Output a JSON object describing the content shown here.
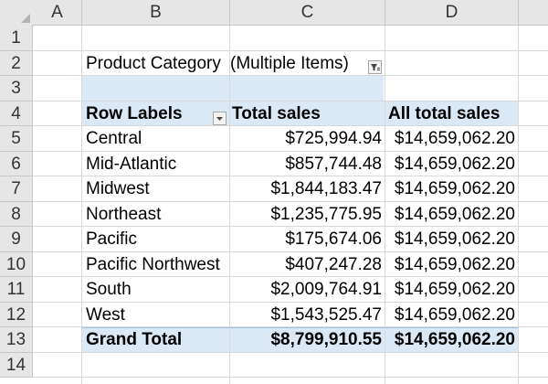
{
  "columns": [
    "A",
    "B",
    "C",
    "D"
  ],
  "rows": [
    "1",
    "2",
    "3",
    "4",
    "5",
    "6",
    "7",
    "8",
    "9",
    "10",
    "11",
    "12",
    "13",
    "14"
  ],
  "filter": {
    "label": "Product Category",
    "value": "(Multiple Items)"
  },
  "pivot": {
    "headers": [
      "Row Labels",
      "Total sales",
      "All total sales"
    ],
    "data": [
      [
        "Central",
        "$725,994.94",
        "$14,659,062.20"
      ],
      [
        "Mid-Atlantic",
        "$857,744.48",
        "$14,659,062.20"
      ],
      [
        "Midwest",
        "$1,844,183.47",
        "$14,659,062.20"
      ],
      [
        "Northeast",
        "$1,235,775.95",
        "$14,659,062.20"
      ],
      [
        "Pacific",
        "$175,674.06",
        "$14,659,062.20"
      ],
      [
        "Pacific Northwest",
        "$407,247.28",
        "$14,659,062.20"
      ],
      [
        "South",
        "$2,009,764.91",
        "$14,659,062.20"
      ],
      [
        "West",
        "$1,543,525.47",
        "$14,659,062.20"
      ]
    ],
    "total": [
      "Grand Total",
      "$8,799,910.55",
      "$14,659,062.20"
    ]
  },
  "colors": {
    "pivot_band": "#dbe9f6",
    "header_bg": "#e6e6e6"
  }
}
